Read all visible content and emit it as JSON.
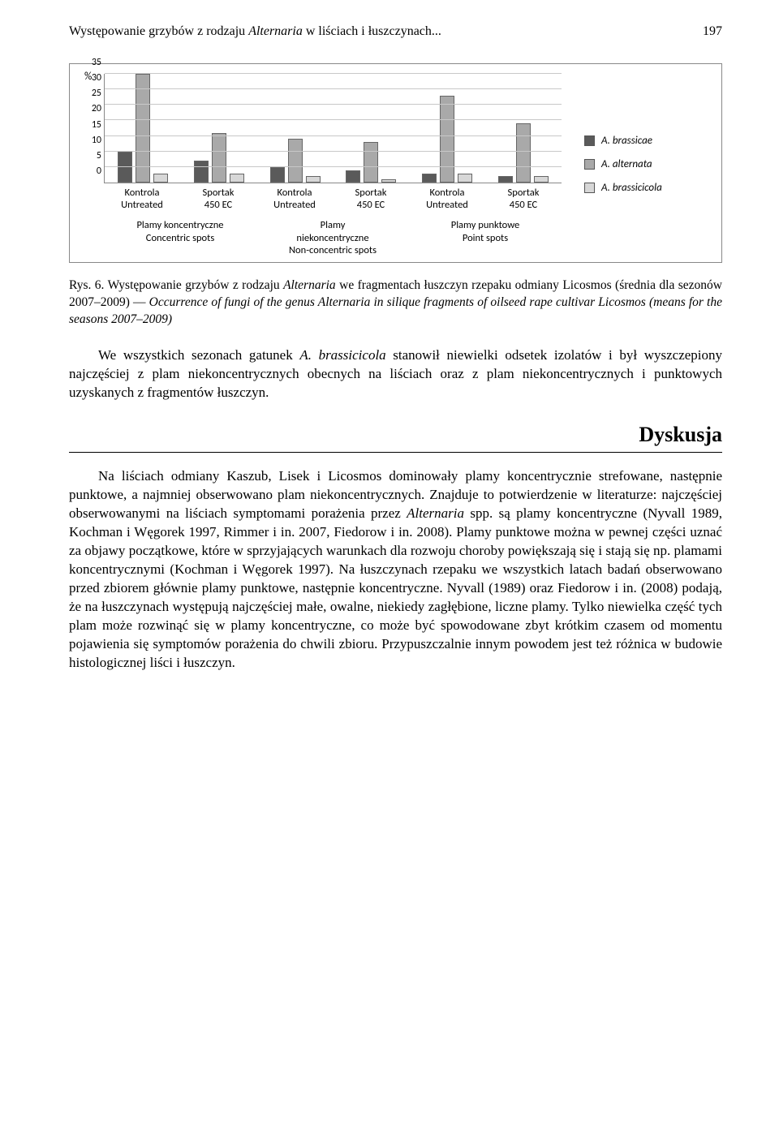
{
  "header": {
    "title_plain_prefix": "Występowanie grzybów z rodzaju ",
    "title_italic": "Alternaria",
    "title_plain_suffix": " w liściach i łuszczynach...",
    "page_number": "197"
  },
  "chart": {
    "type": "bar",
    "y_label": "%",
    "ylim_max": 35,
    "ytick_step": 5,
    "yticks": [
      "0",
      "5",
      "10",
      "15",
      "20",
      "25",
      "30",
      "35"
    ],
    "grid_color": "#c8c8c8",
    "background_color": "#ffffff",
    "series": [
      {
        "name": "A. brassicae",
        "color": "#5a5a5a"
      },
      {
        "name": "A. alternata",
        "color": "#a9a9a9"
      },
      {
        "name": "A. brassicicola",
        "color": "#d7d7d7"
      }
    ],
    "groups": [
      {
        "xlabel_1": "Kontrola",
        "xlabel_2": "Untreated",
        "values": [
          10,
          35,
          3
        ]
      },
      {
        "xlabel_1": "Sportak",
        "xlabel_2": "450 EC",
        "values": [
          7,
          16,
          3
        ]
      },
      {
        "xlabel_1": "Kontrola",
        "xlabel_2": "Untreated",
        "values": [
          5,
          14,
          2
        ]
      },
      {
        "xlabel_1": "Sportak",
        "xlabel_2": "450 EC",
        "values": [
          4,
          13,
          1
        ]
      },
      {
        "xlabel_1": "Kontrola",
        "xlabel_2": "Untreated",
        "values": [
          3,
          28,
          3
        ]
      },
      {
        "xlabel_1": "Sportak",
        "xlabel_2": "450 EC",
        "values": [
          2,
          19,
          2
        ]
      }
    ],
    "super_groups": [
      {
        "line1": "Plamy koncentryczne",
        "line2": "Concentric spots"
      },
      {
        "line1": "Plamy",
        "line2": "niekoncentryczne",
        "line3": "Non-concentric spots"
      },
      {
        "line1": "Plamy punktowe",
        "line2": "Point spots"
      }
    ]
  },
  "caption": {
    "prefix": "Rys. 6. Występowanie grzybów z rodzaju ",
    "italic1": "Alternaria",
    "mid1": " we fragmentach łuszczyn rzepaku odmiany Licosmos (średnia dla sezonów 2007–2009) — ",
    "italic2": "Occurrence of fungi of the genus Alternaria in silique fragments of oilseed rape cultivar Licosmos (means for the seasons 2007–2009)"
  },
  "para1": {
    "t1": "We wszystkich sezonach gatunek ",
    "i1": "A. brassicicola",
    "t2": " stanowił niewielki odsetek izolatów i był wyszczepiony najczęściej z plam niekoncentrycznych obecnych na liściach oraz z plam niekoncentrycznych i punktowych uzyskanych z fragmentów łuszczyn."
  },
  "section_heading": "Dyskusja",
  "para2": {
    "t1": "Na liściach odmiany Kaszub, Lisek i Licosmos dominowały plamy koncentrycznie strefowane, następnie punktowe, a najmniej obserwowano plam niekoncentrycznych. Znajduje to potwierdzenie w literaturze: najczęściej obserwowanymi na liściach symptomami porażenia przez ",
    "i1": "Alternaria",
    "t2": " spp. są plamy koncentryczne (Nyvall 1989, Kochman i Węgorek 1997, Rimmer i in. 2007, Fiedorow i in. 2008). Plamy punktowe można w pewnej części uznać za objawy początkowe, które w sprzyjających warunkach dla rozwoju choroby powiększają się i stają się np. plamami koncentrycznymi (Kochman i Węgorek 1997). Na łuszczynach rzepaku we wszystkich latach badań obserwowano przed zbiorem głównie plamy punktowe, następnie koncentryczne. Nyvall (1989) oraz Fiedorow i in. (2008) podają, że na łuszczynach występują najczęściej małe, owalne, niekiedy zagłębione, liczne plamy. Tylko niewielka część tych plam może rozwinąć się w plamy koncentryczne, co może być spowodowane zbyt krótkim czasem od momentu pojawienia się symptomów porażenia do chwili zbioru. Przypuszczalnie innym powodem jest też różnica w budowie histologicznej liści i łuszczyn."
  }
}
